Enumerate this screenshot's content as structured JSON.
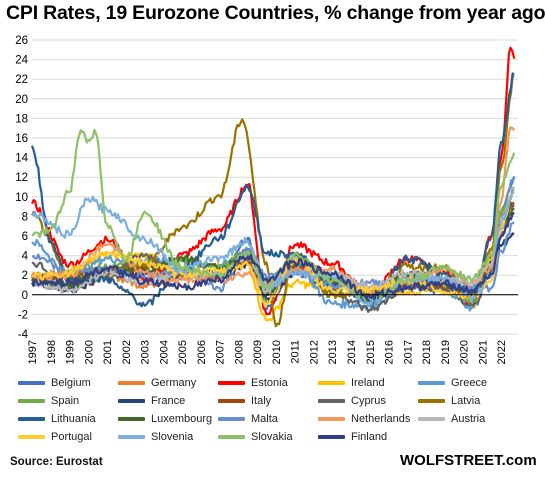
{
  "chart_data": {
    "type": "line",
    "title": "CPI Rates, 19 Eurozone Countries, % change from year ago",
    "xlabel": "",
    "ylabel": "",
    "xlim": [
      1997,
      2022.9
    ],
    "ylim": [
      -4,
      26
    ],
    "y_ticks": [
      -4,
      -2,
      0,
      2,
      4,
      6,
      8,
      10,
      12,
      14,
      16,
      18,
      20,
      22,
      24,
      26
    ],
    "x_ticks": [
      "1997",
      "1998",
      "1999",
      "2000",
      "2001",
      "2002",
      "2003",
      "2004",
      "2005",
      "2006",
      "2007",
      "2008",
      "2009",
      "2010",
      "2011",
      "2012",
      "2013",
      "2014",
      "2015",
      "2016",
      "2017",
      "2018",
      "2019",
      "2020",
      "2021",
      "2022"
    ],
    "grid": "horizontal",
    "legend_position": "bottom",
    "series": [
      {
        "name": "Belgium",
        "color": "#4472C4",
        "x": [
          1997,
          1999,
          2001,
          2003,
          2005,
          2007,
          2008.5,
          2009.5,
          2011,
          2013,
          2015,
          2017,
          2019,
          2020.5,
          2021.5,
          2022,
          2022.7
        ],
        "y": [
          1.5,
          1.0,
          2.5,
          1.5,
          2.5,
          1.8,
          5.8,
          -1.5,
          3.5,
          1.2,
          0.5,
          2.2,
          1.2,
          0.3,
          4.0,
          8.5,
          12.0
        ]
      },
      {
        "name": "Germany",
        "color": "#ED7D31",
        "x": [
          1997,
          1999,
          2001,
          2003,
          2005,
          2007,
          2008.5,
          2009.5,
          2011,
          2013,
          2015,
          2017,
          2019,
          2020.5,
          2021.5,
          2022,
          2022.7
        ],
        "y": [
          1.5,
          0.6,
          2.0,
          1.0,
          1.9,
          2.3,
          3.3,
          -0.5,
          2.5,
          1.6,
          0.1,
          1.7,
          1.4,
          -0.7,
          4.5,
          8.2,
          10.9
        ]
      },
      {
        "name": "Estonia",
        "color": "#FF0000",
        "x": [
          1997,
          1999,
          2001,
          2003,
          2005,
          2007,
          2008.5,
          2009.5,
          2011,
          2013,
          2015,
          2017,
          2019,
          2020.5,
          2021.5,
          2022,
          2022.5,
          2022.7
        ],
        "y": [
          9.3,
          3.1,
          5.6,
          1.4,
          4.1,
          6.7,
          11.2,
          -2.0,
          5.1,
          3.2,
          0.1,
          3.7,
          2.3,
          -1.0,
          6.0,
          14.0,
          25.2,
          24.1
        ]
      },
      {
        "name": "Ireland",
        "color": "#FFC000",
        "x": [
          1997,
          1999,
          2001,
          2003,
          2005,
          2007,
          2008.5,
          2009.5,
          2011,
          2013,
          2015,
          2017,
          2019,
          2020.5,
          2021.5,
          2022,
          2022.7
        ],
        "y": [
          1.2,
          2.5,
          4.0,
          4.0,
          2.2,
          2.9,
          3.1,
          -2.6,
          1.2,
          0.5,
          0.0,
          0.3,
          0.9,
          -1.0,
          3.7,
          7.0,
          9.4
        ]
      },
      {
        "name": "Greece",
        "color": "#5B9BD5",
        "x": [
          1997,
          1999,
          2001,
          2003,
          2005,
          2007,
          2008.5,
          2009.5,
          2011,
          2013,
          2015,
          2017,
          2019,
          2020.5,
          2021.5,
          2022,
          2022.7
        ],
        "y": [
          5.4,
          2.1,
          3.7,
          3.4,
          3.5,
          3.0,
          4.2,
          1.3,
          3.1,
          -0.9,
          -1.1,
          1.1,
          0.5,
          -1.3,
          2.8,
          8.0,
          12.1
        ]
      },
      {
        "name": "Spain",
        "color": "#70AD47",
        "x": [
          1997,
          1999,
          2001,
          2003,
          2005,
          2007,
          2008.5,
          2009.5,
          2011,
          2013,
          2015,
          2017,
          2019,
          2020.5,
          2021.5,
          2022,
          2022.7
        ],
        "y": [
          1.9,
          2.2,
          2.8,
          3.1,
          3.4,
          2.8,
          4.6,
          -0.8,
          3.1,
          1.5,
          -0.6,
          2.0,
          0.8,
          -0.6,
          3.0,
          8.5,
          10.5
        ]
      },
      {
        "name": "France",
        "color": "#264478",
        "x": [
          1997,
          1999,
          2001,
          2003,
          2005,
          2007,
          2008.5,
          2009.5,
          2011,
          2013,
          2015,
          2017,
          2019,
          2020.5,
          2021.5,
          2022,
          2022.7
        ],
        "y": [
          1.3,
          0.6,
          1.8,
          2.2,
          1.9,
          1.6,
          3.2,
          -0.4,
          2.3,
          1.0,
          0.1,
          1.2,
          1.3,
          0.2,
          2.1,
          5.0,
          6.2
        ]
      },
      {
        "name": "Italy",
        "color": "#9E480E",
        "x": [
          1997,
          1999,
          2001,
          2003,
          2005,
          2007,
          2008.5,
          2009.5,
          2011,
          2013,
          2015,
          2017,
          2019,
          2020.5,
          2021.5,
          2022,
          2022.7
        ],
        "y": [
          1.9,
          1.7,
          2.3,
          2.8,
          2.2,
          2.0,
          3.5,
          0.8,
          2.9,
          1.2,
          0.1,
          1.3,
          0.6,
          -0.1,
          2.5,
          6.8,
          9.4
        ]
      },
      {
        "name": "Cyprus",
        "color": "#636363",
        "x": [
          1997,
          1999,
          2001,
          2003,
          2005,
          2007,
          2008.5,
          2009.5,
          2011,
          2013,
          2015,
          2017,
          2019,
          2020.5,
          2021.5,
          2022,
          2022.7
        ],
        "y": [
          3.3,
          1.1,
          2.0,
          4.0,
          2.0,
          2.2,
          4.4,
          0.2,
          3.5,
          0.4,
          -1.5,
          0.7,
          0.5,
          -1.1,
          2.3,
          6.0,
          9.0
        ]
      },
      {
        "name": "Latvia",
        "color": "#997300",
        "x": [
          1997,
          1999,
          2001,
          2003,
          2005,
          2007,
          2008.2,
          2009.5,
          2010,
          2011,
          2013,
          2015,
          2017,
          2019,
          2020.5,
          2021.5,
          2022,
          2022.7
        ],
        "y": [
          8.1,
          2.1,
          2.5,
          2.9,
          6.9,
          10.1,
          17.9,
          3.3,
          -3.2,
          4.2,
          0.0,
          0.2,
          2.9,
          2.7,
          -0.5,
          4.7,
          13.0,
          22.4
        ]
      },
      {
        "name": "Lithuania",
        "color": "#255E91",
        "x": [
          1997,
          1998,
          1999,
          2001,
          2002,
          2003,
          2005,
          2007,
          2008.5,
          2009.5,
          2011,
          2013,
          2015,
          2017,
          2019,
          2020.5,
          2021.5,
          2022,
          2022.7
        ],
        "y": [
          15.2,
          5.4,
          1.5,
          1.6,
          0.3,
          -1.1,
          2.7,
          5.8,
          11.0,
          4.2,
          4.1,
          1.2,
          -0.7,
          3.7,
          2.2,
          -0.1,
          6.0,
          15.6,
          22.5
        ]
      },
      {
        "name": "Luxembourg",
        "color": "#43682B",
        "x": [
          1997,
          1999,
          2001,
          2003,
          2005,
          2007,
          2008.5,
          2009.5,
          2011,
          2013,
          2015,
          2017,
          2019,
          2020.5,
          2021.5,
          2022,
          2022.7
        ],
        "y": [
          1.4,
          1.0,
          2.4,
          2.5,
          3.8,
          2.7,
          4.1,
          0.0,
          3.7,
          1.7,
          0.1,
          2.1,
          1.6,
          -0.3,
          3.4,
          7.0,
          8.8
        ]
      },
      {
        "name": "Malta",
        "color": "#698ED0",
        "x": [
          1997,
          1999,
          2001,
          2003,
          2005,
          2007,
          2008.5,
          2009.5,
          2011,
          2013,
          2015,
          2017,
          2019,
          2020.5,
          2021.5,
          2022,
          2022.7
        ],
        "y": [
          3.9,
          2.3,
          2.5,
          1.9,
          2.5,
          0.7,
          4.7,
          1.8,
          2.5,
          1.0,
          1.2,
          1.3,
          1.5,
          0.8,
          0.7,
          4.5,
          7.4
        ]
      },
      {
        "name": "Netherlands",
        "color": "#F1975A",
        "x": [
          1997,
          1999,
          2001,
          2003,
          2005,
          2007,
          2008.5,
          2009.5,
          2011,
          2013,
          2015,
          2017,
          2019,
          2020.5,
          2021.5,
          2022,
          2022.5,
          2022.7
        ],
        "y": [
          1.9,
          2.0,
          5.1,
          2.2,
          1.5,
          1.6,
          2.2,
          1.0,
          2.5,
          2.6,
          0.2,
          1.3,
          2.7,
          1.1,
          2.8,
          9.5,
          17.1,
          16.8
        ]
      },
      {
        "name": "Austria",
        "color": "#B7B7B7",
        "x": [
          1997,
          1999,
          2001,
          2003,
          2005,
          2007,
          2008.5,
          2009.5,
          2011,
          2013,
          2015,
          2017,
          2019,
          2020.5,
          2021.5,
          2022,
          2022.7
        ],
        "y": [
          1.2,
          0.5,
          2.3,
          1.3,
          2.1,
          2.2,
          3.9,
          0.4,
          3.6,
          2.1,
          0.8,
          2.2,
          1.5,
          1.4,
          3.2,
          7.0,
          11.0
        ]
      },
      {
        "name": "Portugal",
        "color": "#FFCD33",
        "x": [
          1997,
          1999,
          2001,
          2003,
          2005,
          2007,
          2008.5,
          2009.5,
          2011,
          2013,
          2015,
          2017,
          2019,
          2020.5,
          2021.5,
          2022,
          2022.7
        ],
        "y": [
          1.9,
          2.2,
          4.4,
          3.3,
          2.1,
          2.4,
          3.1,
          -0.9,
          3.6,
          0.4,
          0.5,
          1.6,
          0.3,
          -0.1,
          1.5,
          7.0,
          10.6
        ]
      },
      {
        "name": "Slovenia",
        "color": "#7CAFDD",
        "x": [
          1997,
          1999,
          2000,
          2001,
          2003,
          2005,
          2007,
          2008.5,
          2009.5,
          2011,
          2013,
          2015,
          2017,
          2019,
          2020.5,
          2021.5,
          2022,
          2022.7
        ],
        "y": [
          8.3,
          6.1,
          9.8,
          8.6,
          5.7,
          2.5,
          3.8,
          5.5,
          0.9,
          2.1,
          1.9,
          -0.8,
          1.6,
          1.7,
          -0.3,
          2.0,
          7.5,
          10.6
        ]
      },
      {
        "name": "Slovakia",
        "color": "#8CC168",
        "x": [
          1997,
          1998,
          1999,
          1999.6,
          2000,
          2000.4,
          2001,
          2002,
          2003,
          2005,
          2007,
          2008.5,
          2009.5,
          2011,
          2013,
          2015,
          2017,
          2019,
          2020.5,
          2021.5,
          2022,
          2022.7
        ],
        "y": [
          6.0,
          6.7,
          10.5,
          16.8,
          15.8,
          16.5,
          7.2,
          3.5,
          8.5,
          2.8,
          1.9,
          4.4,
          0.9,
          4.1,
          1.5,
          -0.3,
          1.4,
          2.8,
          1.6,
          4.0,
          11.0,
          14.5
        ]
      },
      {
        "name": "Finland",
        "color": "#333F85",
        "x": [
          1997,
          1999,
          2001,
          2003,
          2005,
          2007,
          2008.5,
          2009.5,
          2011,
          2013,
          2015,
          2017,
          2019,
          2020.5,
          2021.5,
          2022,
          2022.7
        ],
        "y": [
          1.2,
          1.3,
          2.7,
          1.3,
          0.8,
          1.6,
          3.9,
          1.6,
          3.3,
          2.2,
          -0.2,
          0.8,
          1.1,
          0.4,
          2.1,
          6.0,
          8.4
        ]
      }
    ]
  },
  "source": "Source: Eurostat",
  "brand": "WOLFSTREET.com"
}
